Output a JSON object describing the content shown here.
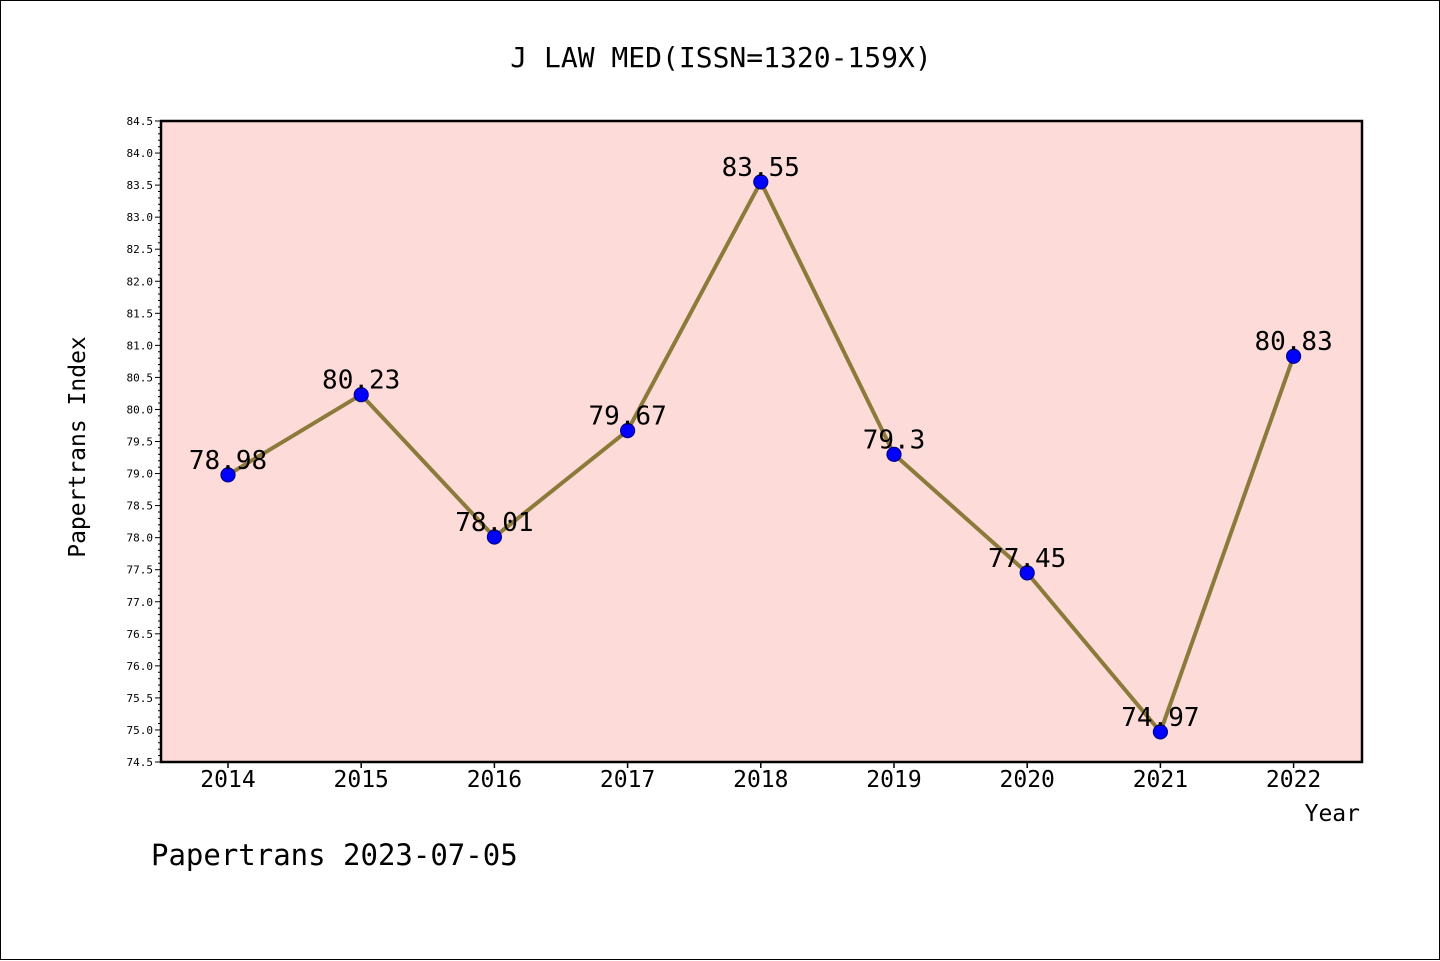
{
  "chart_data": {
    "type": "line",
    "title": "J LAW MED(ISSN=1320-159X)",
    "xlabel": "Year",
    "ylabel": "Papertrans Index",
    "footer": "Papertrans 2023-07-05",
    "categories": [
      "2014",
      "2015",
      "2016",
      "2017",
      "2018",
      "2019",
      "2020",
      "2021",
      "2022"
    ],
    "series": [
      {
        "values": [
          78.98,
          80.23,
          78.01,
          79.67,
          83.55,
          79.3,
          77.45,
          74.97,
          80.83
        ],
        "labels": [
          "78.98",
          "80.23",
          "78.01",
          "79.67",
          "83.55",
          "79.3",
          "77.45",
          "74.97",
          "80.83"
        ]
      }
    ],
    "ylim": [
      74.5,
      84.5
    ],
    "yticks": [
      "74.5",
      "75.0",
      "75.5",
      "76.0",
      "76.5",
      "77.0",
      "77.5",
      "78.0",
      "78.5",
      "79.0",
      "79.5",
      "80.0",
      "80.5",
      "81.0",
      "81.5",
      "82.0",
      "82.5",
      "83.0",
      "83.5",
      "84.0",
      "84.5"
    ],
    "grid": false,
    "colors": {
      "plot_background": "#fddbd8",
      "line": "#8c7a3a",
      "marker": "#0000ff",
      "marker_edge": "#00008b",
      "axis": "#000000"
    }
  }
}
